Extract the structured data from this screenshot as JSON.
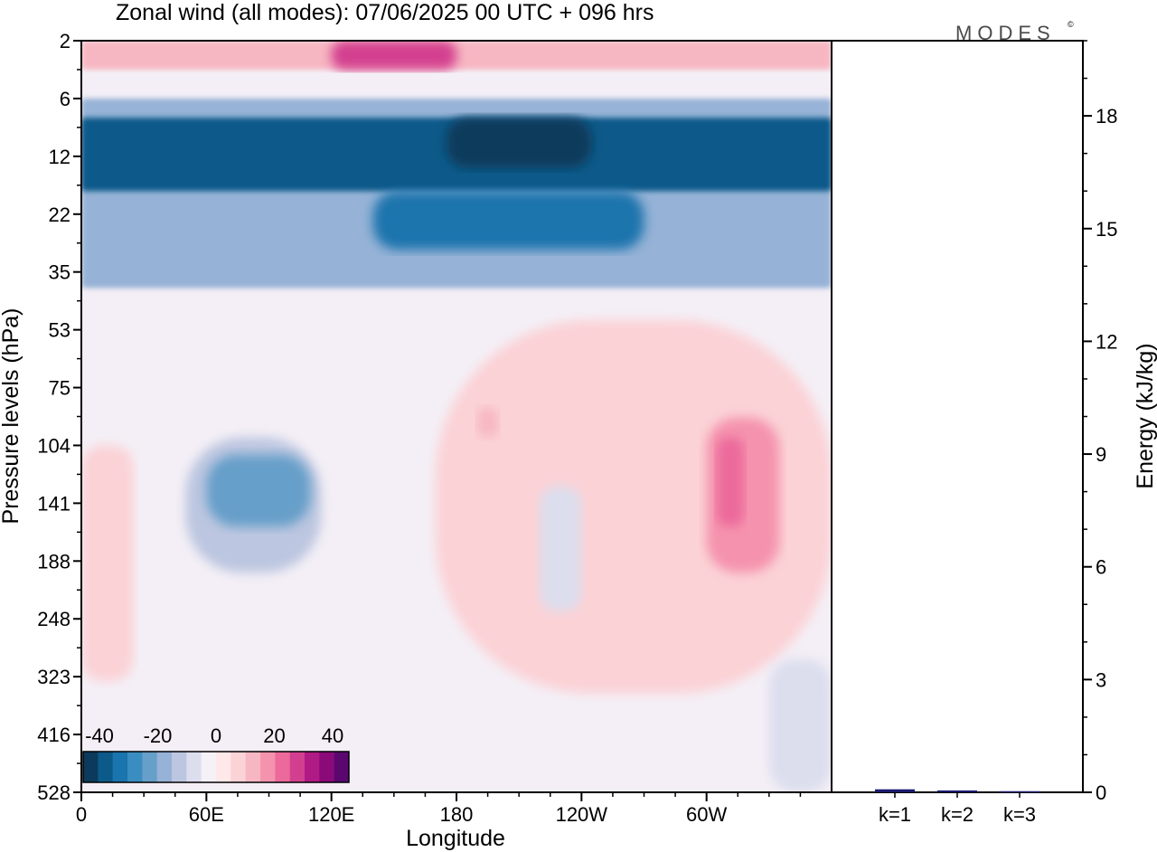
{
  "title": "Zonal wind (all modes):  07/06/2025  00 UTC  + 096 hrs",
  "logo": "MODES",
  "logo_mark": "©",
  "left_panel": {
    "xlabel": "Longitude",
    "ylabel": "Pressure levels (hPa)",
    "xticks": [
      "0",
      "60E",
      "120E",
      "180",
      "120W",
      "60W"
    ],
    "yticks": [
      "2",
      "6",
      "12",
      "22",
      "35",
      "53",
      "75",
      "104",
      "141",
      "188",
      "248",
      "323",
      "416",
      "528"
    ],
    "colorbar": {
      "tick_labels": [
        "-40",
        "-20",
        "0",
        "20",
        "40"
      ],
      "colors": [
        "#0b3a5c",
        "#0c5a8a",
        "#1a74ad",
        "#3a8dc0",
        "#669fc9",
        "#96b2d6",
        "#bcc6e0",
        "#dcdeee",
        "#f6f1f6",
        "#ffe8e8",
        "#fbd2d6",
        "#f7b7c2",
        "#f593ae",
        "#ec699b",
        "#d33f8f",
        "#b01a84",
        "#8a0a7a",
        "#5a0870"
      ]
    }
  },
  "right_panel": {
    "ylabel": "Energy (kJ/kg)",
    "yticks": [
      "0",
      "3",
      "6",
      "9",
      "12",
      "15",
      "18"
    ]
  },
  "chart_data": [
    {
      "type": "heatmap",
      "title": "Zonal wind (all modes):  07/06/2025  00 UTC  + 096 hrs",
      "xlabel": "Longitude",
      "ylabel": "Pressure levels (hPa)",
      "x_ticks": [
        "0",
        "60E",
        "120E",
        "180",
        "120W",
        "60W"
      ],
      "y_levels_hPa": [
        2,
        6,
        12,
        22,
        35,
        53,
        75,
        104,
        141,
        188,
        248,
        323,
        416,
        528
      ],
      "colorbar_range": [
        -40,
        40
      ],
      "colorbar_ticks": [
        -40,
        -20,
        0,
        20,
        40
      ],
      "features": [
        {
          "lon_start": 0,
          "lon_end": 360,
          "p_top": 2,
          "p_bottom": 4,
          "value": 12
        },
        {
          "lon_start": 120,
          "lon_end": 180,
          "p_top": 2,
          "p_bottom": 4,
          "value": 25
        },
        {
          "lon_start": 0,
          "lon_end": 360,
          "p_top": 6,
          "p_bottom": 40,
          "value": -15
        },
        {
          "lon_start": 0,
          "lon_end": 360,
          "p_top": 8,
          "p_bottom": 18,
          "value": -32
        },
        {
          "lon_start": 175,
          "lon_end": 245,
          "p_top": 8,
          "p_bottom": 14,
          "value": -38
        },
        {
          "lon_start": 140,
          "lon_end": 270,
          "p_top": 18,
          "p_bottom": 30,
          "value": -28
        },
        {
          "lon_start": 170,
          "lon_end": 360,
          "p_top": 50,
          "p_bottom": 350,
          "value": 6
        },
        {
          "lon_start": 190,
          "lon_end": 200,
          "p_top": 85,
          "p_bottom": 100,
          "value": 12
        },
        {
          "lon_start": 300,
          "lon_end": 335,
          "p_top": 90,
          "p_bottom": 200,
          "value": 15
        },
        {
          "lon_start": 305,
          "lon_end": 318,
          "p_top": 100,
          "p_bottom": 160,
          "value": 22
        },
        {
          "lon_start": 50,
          "lon_end": 115,
          "p_top": 100,
          "p_bottom": 200,
          "value": -10
        },
        {
          "lon_start": 60,
          "lon_end": 110,
          "p_top": 110,
          "p_bottom": 160,
          "value": -18
        },
        {
          "lon_start": 0,
          "lon_end": 25,
          "p_top": 104,
          "p_bottom": 330,
          "value": 8
        },
        {
          "lon_start": 220,
          "lon_end": 240,
          "p_top": 130,
          "p_bottom": 240,
          "value": -6
        },
        {
          "lon_start": 330,
          "lon_end": 360,
          "p_top": 300,
          "p_bottom": 528,
          "value": -5
        }
      ]
    },
    {
      "type": "bar",
      "ylabel": "Energy (kJ/kg)",
      "categories": [
        "k=1",
        "k=2",
        "k=3"
      ],
      "values": [
        0.08,
        0.05,
        0.03
      ],
      "ylim": [
        0,
        20
      ]
    }
  ]
}
